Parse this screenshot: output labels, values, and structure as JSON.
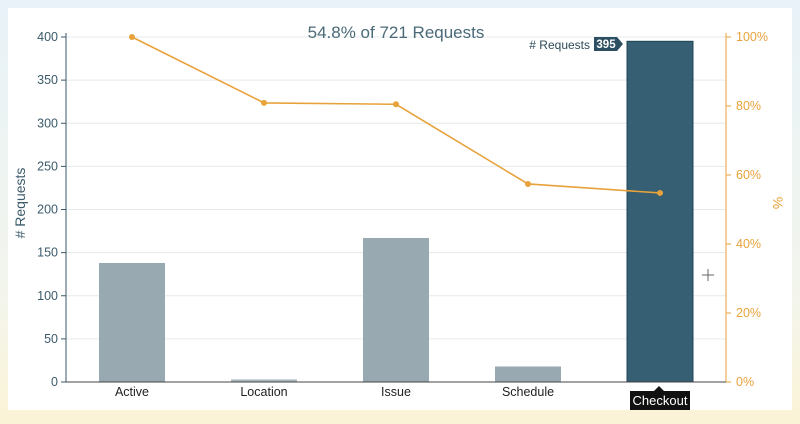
{
  "chart_data": {
    "type": "bar",
    "title": "54.8% of 721 Requests",
    "ylabel": "# Requests",
    "y2label": "%",
    "categories": [
      "Active",
      "Location",
      "Issue",
      "Schedule",
      "Checkout"
    ],
    "series": [
      {
        "name": "# Requests",
        "type": "bar",
        "axis": "left",
        "values": [
          138,
          3,
          167,
          18,
          395
        ]
      },
      {
        "type": "line",
        "axis": "right",
        "values": [
          100,
          80.9,
          80.5,
          57.4,
          54.8
        ]
      }
    ],
    "ylim": [
      0,
      400
    ],
    "y_ticks": [
      0,
      50,
      100,
      150,
      200,
      250,
      300,
      350,
      400
    ],
    "y2lim": [
      0,
      100
    ],
    "y2_ticks": [
      "0%",
      "20%",
      "40%",
      "60%",
      "80%",
      "100%"
    ],
    "grid": true,
    "highlight_index": 4,
    "tooltip": {
      "label": "# Requests",
      "value": "395"
    },
    "hover_label": "Checkout",
    "colors": {
      "bar": "#98a9b1",
      "bar_dim": "#a9b8c0",
      "bar_highlight": "#365f73",
      "line": "#e8a23b",
      "axis_left": "#3b5a6a",
      "axis_right": "#e8a23b"
    }
  }
}
